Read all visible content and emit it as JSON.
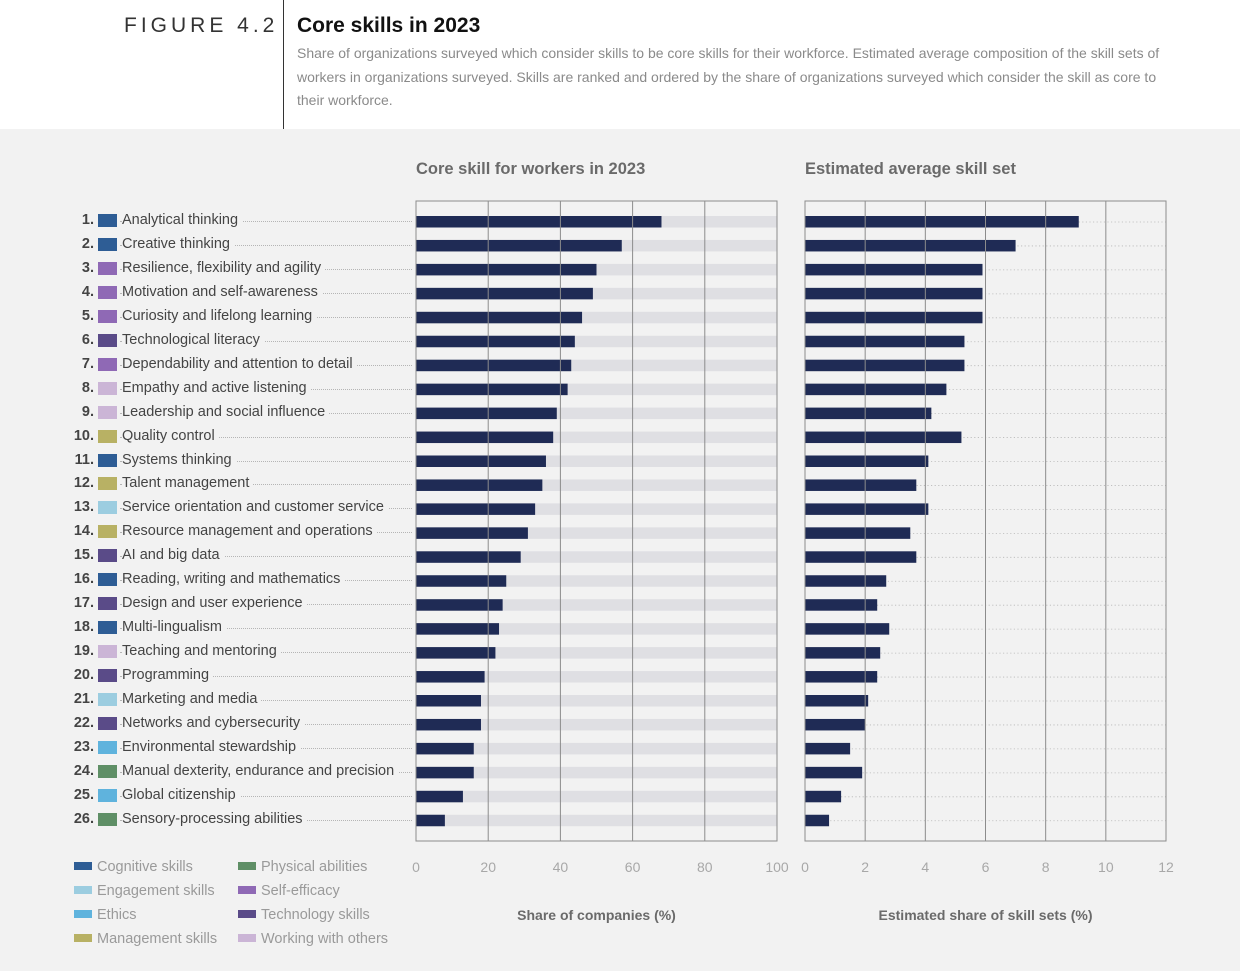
{
  "figure": {
    "label": "FIGURE 4.2",
    "title": "Core skills in 2023",
    "subtitle": "Share of organizations surveyed which consider skills to be core skills for their workforce. Estimated average composition of the skill sets of  workers in organizations surveyed. Skills are ranked and ordered by the share of organizations surveyed which consider the skill as core to their workforce."
  },
  "colors": {
    "bar": "#1f2b55",
    "track": "#dfdfe3",
    "frame": "#8c8c8c",
    "category": {
      "Cognitive skills": "#2e5d95",
      "Engagement skills": "#9ccde0",
      "Ethics": "#5fb3dd",
      "Management skills": "#b8b164",
      "Physical abilities": "#5f8f66",
      "Self-efficacy": "#8f69b5",
      "Technology skills": "#5a4b88",
      "Working with others": "#cbb5d6"
    }
  },
  "chart_data": [
    {
      "type": "bar",
      "orientation": "horizontal",
      "title": "Core skill for workers in 2023",
      "xlabel": "Share of companies (%)",
      "xlim": [
        0,
        100
      ],
      "xticks": [
        "0",
        "20",
        "40",
        "60",
        "80",
        "100"
      ],
      "categories": [
        "Analytical thinking",
        "Creative thinking",
        "Resilience, flexibility and agility",
        "Motivation and self-awareness",
        "Curiosity and lifelong learning",
        "Technological literacy",
        "Dependability and attention to detail",
        "Empathy and active listening",
        "Leadership and social influence",
        "Quality control",
        "Systems thinking",
        "Talent management",
        "Service orientation and customer service",
        "Resource management and operations",
        "AI and big data",
        "Reading, writing and mathematics",
        "Design and user experience",
        "Multi-lingualism",
        "Teaching and mentoring",
        "Programming",
        "Marketing and media",
        "Networks and cybersecurity",
        "Environmental stewardship",
        "Manual dexterity, endurance and precision",
        "Global citizenship",
        "Sensory-processing abilities"
      ],
      "values": [
        68,
        57,
        50,
        49,
        46,
        44,
        43,
        42,
        39,
        38,
        36,
        35,
        33,
        31,
        29,
        25,
        24,
        23,
        22,
        19,
        18,
        18,
        16,
        16,
        13,
        8
      ],
      "max": 100
    },
    {
      "type": "bar",
      "orientation": "horizontal",
      "title": "Estimated average skill set",
      "xlabel": "Estimated share of skill sets (%)",
      "xlim": [
        0,
        12
      ],
      "xticks": [
        "0",
        "2",
        "4",
        "6",
        "8",
        "10",
        "12"
      ],
      "categories": [
        "Analytical thinking",
        "Creative thinking",
        "Resilience, flexibility and agility",
        "Motivation and self-awareness",
        "Curiosity and lifelong learning",
        "Technological literacy",
        "Dependability and attention to detail",
        "Empathy and active listening",
        "Leadership and social influence",
        "Quality control",
        "Systems thinking",
        "Talent management",
        "Service orientation and customer service",
        "Resource management and operations",
        "AI and big data",
        "Reading, writing and mathematics",
        "Design and user experience",
        "Multi-lingualism",
        "Teaching and mentoring",
        "Programming",
        "Marketing and media",
        "Networks and cybersecurity",
        "Environmental stewardship",
        "Manual dexterity, endurance and precision",
        "Global citizenship",
        "Sensory-processing abilities"
      ],
      "values": [
        9.1,
        7.0,
        5.9,
        5.9,
        5.9,
        5.3,
        5.3,
        4.7,
        4.2,
        5.2,
        4.1,
        3.7,
        4.1,
        3.5,
        3.7,
        2.7,
        2.4,
        2.8,
        2.5,
        2.4,
        2.1,
        2.0,
        1.5,
        1.9,
        1.2,
        0.8
      ]
    }
  ],
  "skills": [
    {
      "rank": "1.",
      "name": "Analytical thinking",
      "category": "Cognitive skills"
    },
    {
      "rank": "2.",
      "name": "Creative thinking",
      "category": "Cognitive skills"
    },
    {
      "rank": "3.",
      "name": "Resilience, flexibility and agility",
      "category": "Self-efficacy"
    },
    {
      "rank": "4.",
      "name": "Motivation and self-awareness",
      "category": "Self-efficacy"
    },
    {
      "rank": "5.",
      "name": "Curiosity and lifelong learning",
      "category": "Self-efficacy"
    },
    {
      "rank": "6.",
      "name": "Technological literacy",
      "category": "Technology skills"
    },
    {
      "rank": "7.",
      "name": "Dependability and attention to detail",
      "category": "Self-efficacy"
    },
    {
      "rank": "8.",
      "name": "Empathy and active listening",
      "category": "Working with others"
    },
    {
      "rank": "9.",
      "name": "Leadership and social influence",
      "category": "Working with others"
    },
    {
      "rank": "10.",
      "name": "Quality control",
      "category": "Management skills"
    },
    {
      "rank": "11.",
      "name": "Systems thinking",
      "category": "Cognitive skills"
    },
    {
      "rank": "12.",
      "name": "Talent management",
      "category": "Management skills"
    },
    {
      "rank": "13.",
      "name": "Service orientation and customer service",
      "category": "Engagement skills"
    },
    {
      "rank": "14.",
      "name": "Resource management and operations",
      "category": "Management skills"
    },
    {
      "rank": "15.",
      "name": "AI and big data",
      "category": "Technology skills"
    },
    {
      "rank": "16.",
      "name": "Reading, writing and mathematics",
      "category": "Cognitive skills"
    },
    {
      "rank": "17.",
      "name": "Design and user experience",
      "category": "Technology skills"
    },
    {
      "rank": "18.",
      "name": "Multi-lingualism",
      "category": "Cognitive skills"
    },
    {
      "rank": "19.",
      "name": "Teaching and mentoring",
      "category": "Working with others"
    },
    {
      "rank": "20.",
      "name": "Programming",
      "category": "Technology skills"
    },
    {
      "rank": "21.",
      "name": "Marketing and media",
      "category": "Engagement skills"
    },
    {
      "rank": "22.",
      "name": "Networks and cybersecurity",
      "category": "Technology skills"
    },
    {
      "rank": "23.",
      "name": "Environmental stewardship",
      "category": "Ethics"
    },
    {
      "rank": "24.",
      "name": "Manual dexterity, endurance and precision",
      "category": "Physical abilities"
    },
    {
      "rank": "25.",
      "name": "Global citizenship",
      "category": "Ethics"
    },
    {
      "rank": "26.",
      "name": "Sensory-processing abilities",
      "category": "Physical abilities"
    }
  ],
  "legend": [
    "Cognitive skills",
    "Engagement skills",
    "Ethics",
    "Management skills",
    "Physical abilities",
    "Self-efficacy",
    "Technology skills",
    "Working with others"
  ]
}
